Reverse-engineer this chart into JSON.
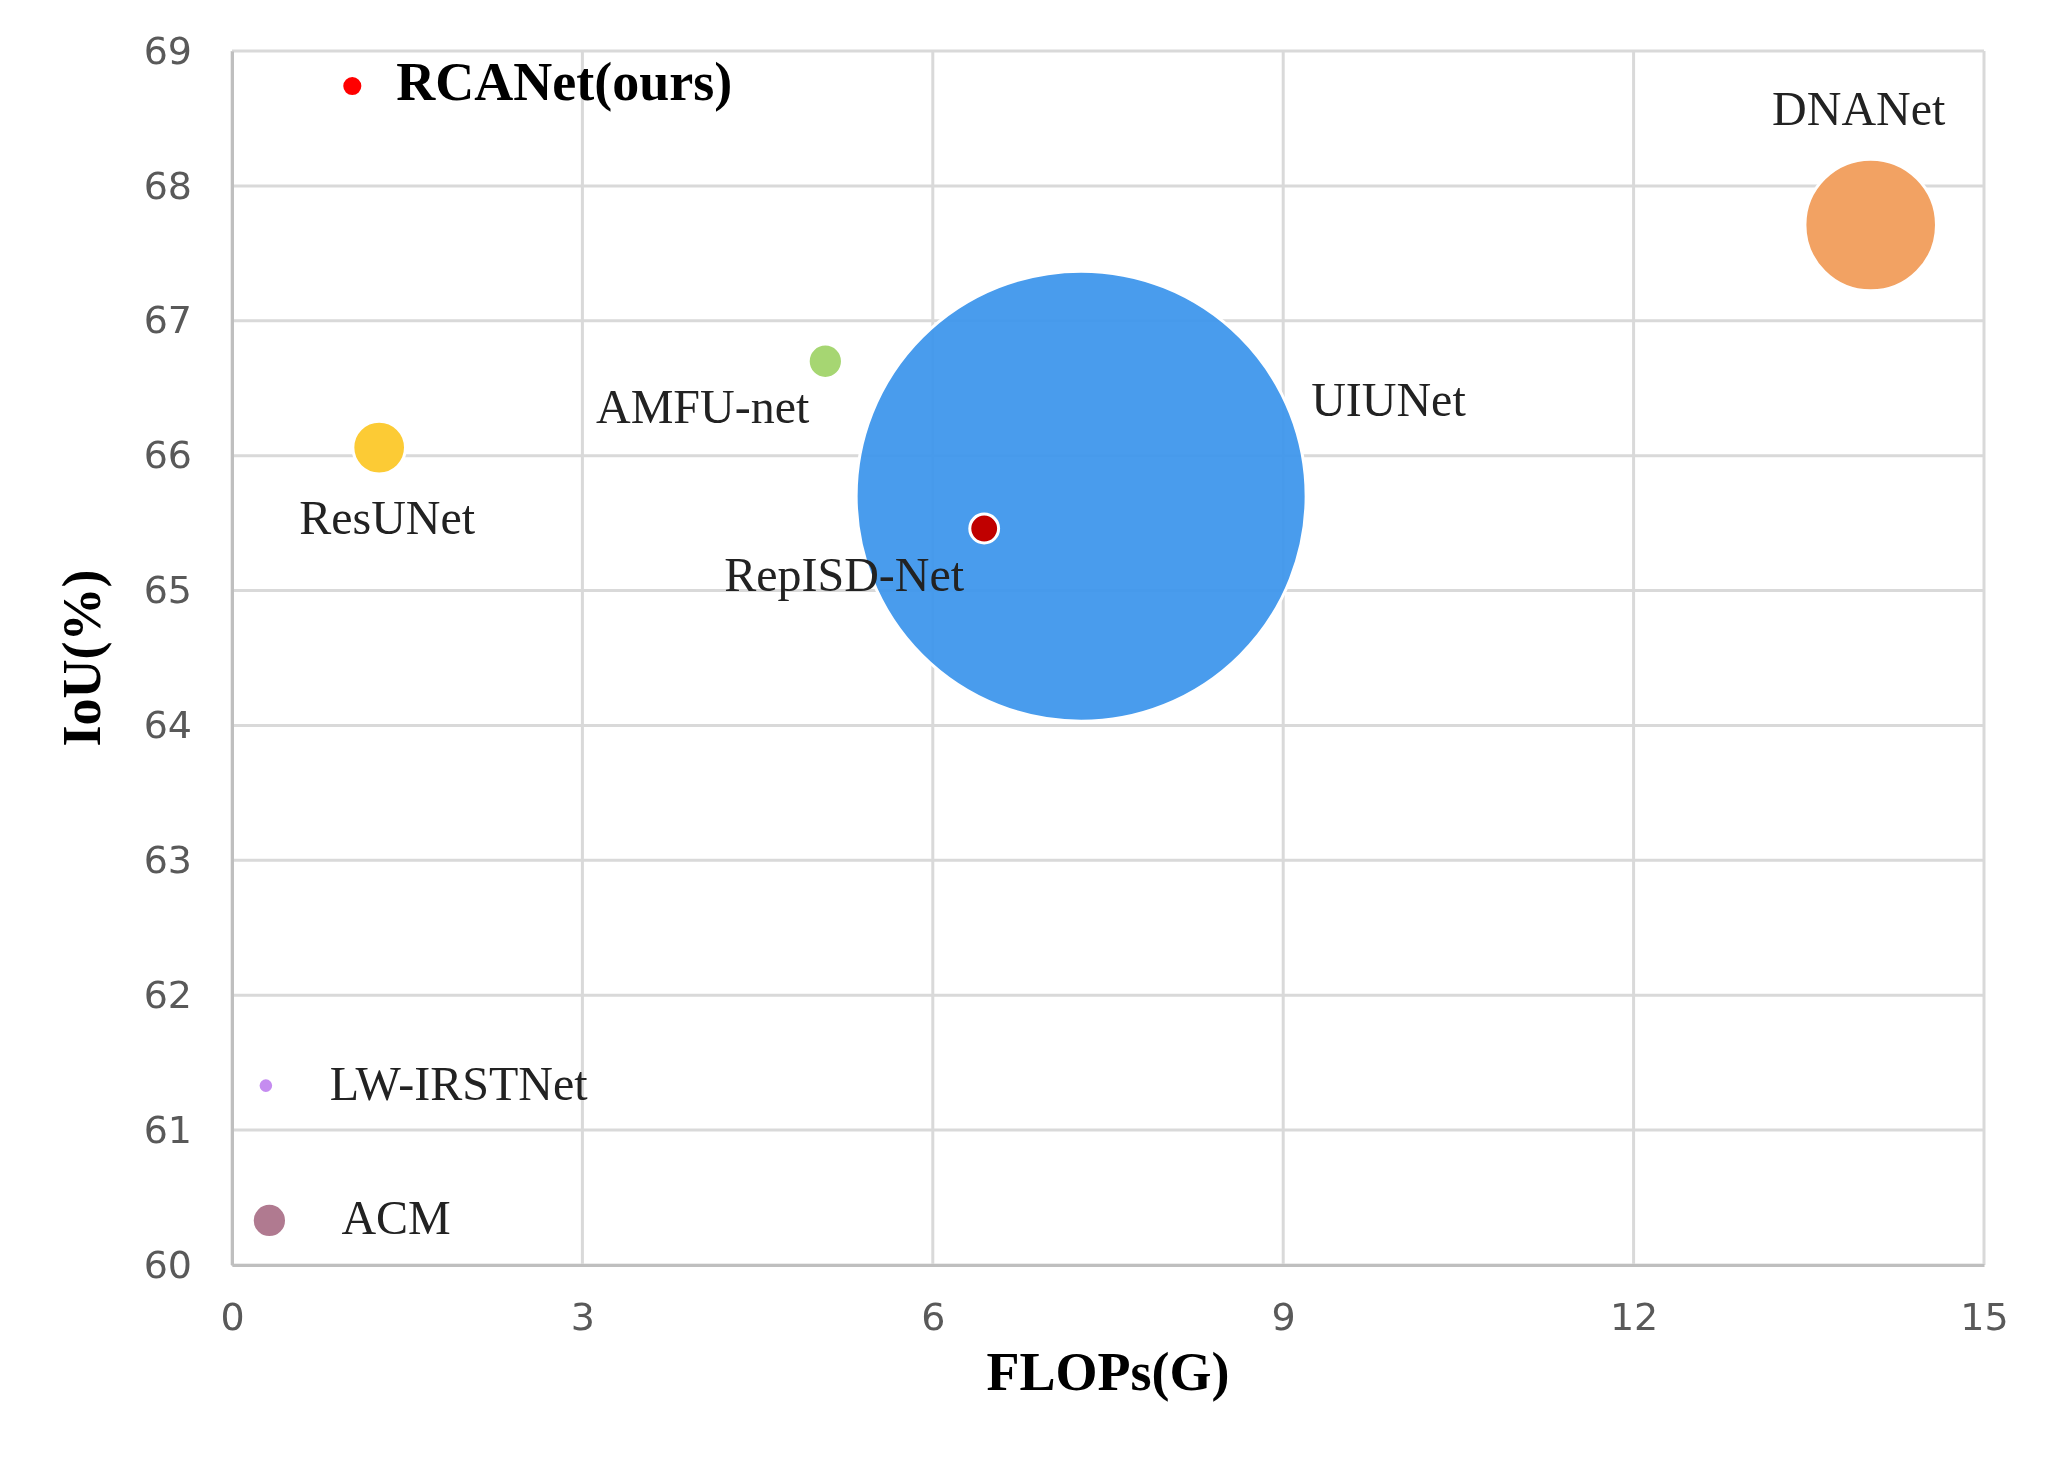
{
  "chart_data": {
    "type": "bubble",
    "xlabel": "FLOPs(G)",
    "ylabel": "IoU(%)",
    "xlim": [
      0,
      15
    ],
    "xticks": [
      0,
      3,
      6,
      9,
      12,
      15
    ],
    "ylim": [
      60,
      69
    ],
    "yticks": [
      60,
      61,
      62,
      63,
      64,
      65,
      66,
      67,
      68,
      69
    ],
    "grid": true,
    "series": [
      {
        "name": "RCANet(ours)",
        "color": "#ff0000",
        "x": [
          1.03
        ],
        "values": [
          68.74
        ],
        "sizes": [
          0.0022
        ]
      },
      {
        "name": "DNANet",
        "color": "#f2a263",
        "x": [
          14.03
        ],
        "values": [
          67.71
        ],
        "sizes": [
          0.0855
        ]
      },
      {
        "name": "UIUNet",
        "color": "#3f97ec",
        "x": [
          7.27
        ],
        "values": [
          65.7
        ],
        "sizes": [
          1
        ]
      },
      {
        "name": "AMFU-net",
        "color": "#a6d672",
        "x": [
          5.08
        ],
        "values": [
          66.7
        ],
        "sizes": [
          0.0058
        ]
      },
      {
        "name": "ResUNet",
        "color": "#fccb35",
        "x": [
          1.26
        ],
        "values": [
          66.06
        ],
        "sizes": [
          0.0137
        ]
      },
      {
        "name": "RepISD-Net",
        "color": "#c00000",
        "x": [
          6.44
        ],
        "values": [
          65.46
        ],
        "sizes": [
          0.0041
        ]
      },
      {
        "name": "LW-IRSTNet",
        "color": "#c58cf0",
        "x": [
          0.29
        ],
        "values": [
          61.33
        ],
        "sizes": [
          0.0012
        ]
      },
      {
        "name": "ACM",
        "color": "#b07a90",
        "x": [
          0.32
        ],
        "values": [
          60.33
        ],
        "sizes": [
          0.0058
        ]
      }
    ]
  }
}
